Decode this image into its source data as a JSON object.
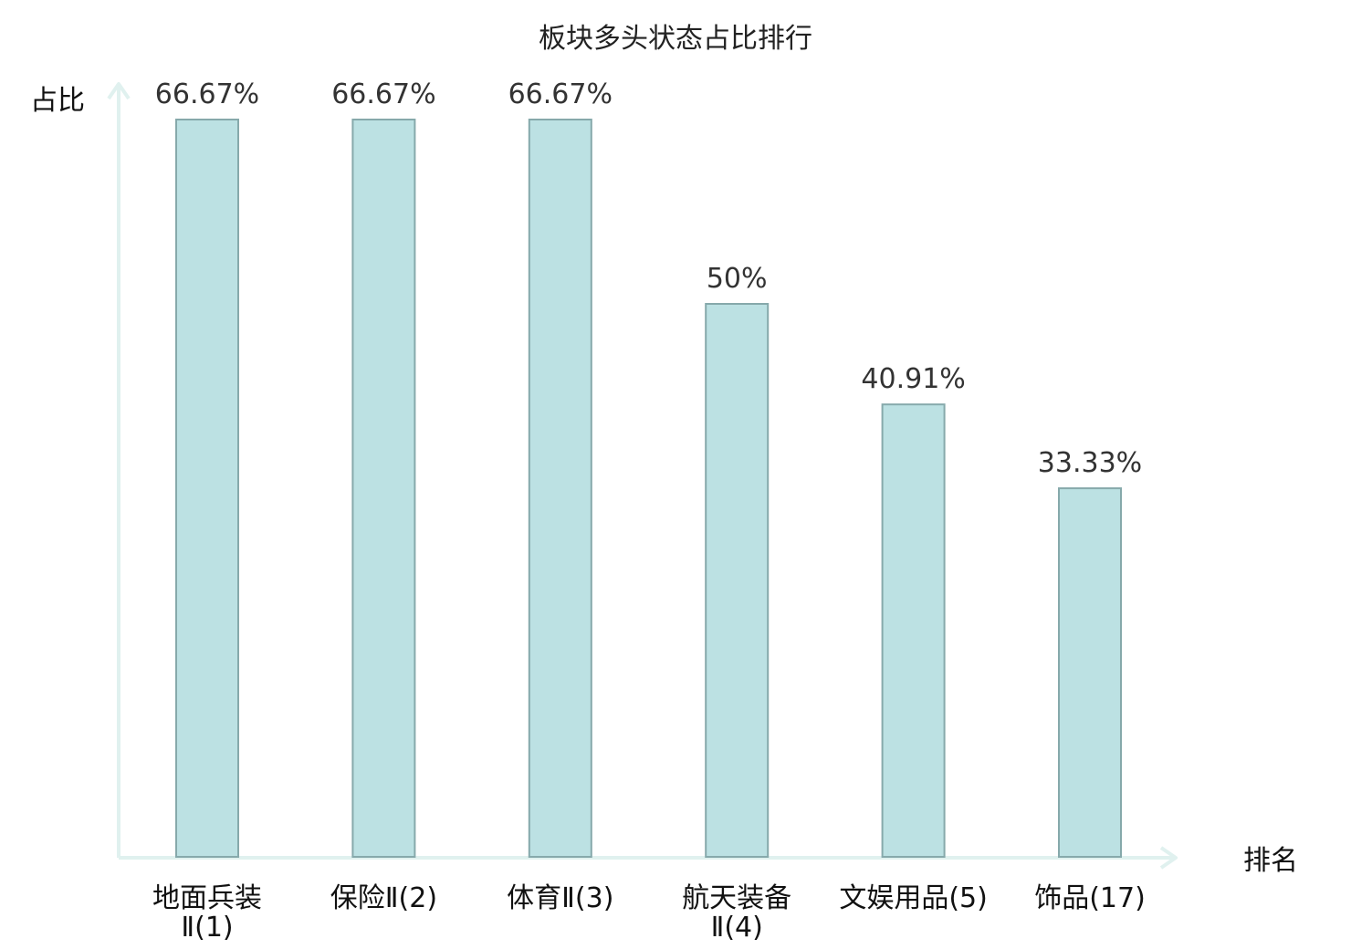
{
  "chart_data": {
    "type": "bar",
    "title": "板块多头状态占比排行",
    "ylabel": "占比",
    "xlabel": "排名",
    "ylim": [
      0,
      66.67
    ],
    "grid": false,
    "categories": [
      [
        "地面兵装",
        "Ⅱ(1)"
      ],
      [
        "保险Ⅱ(2)"
      ],
      [
        "体育Ⅱ(3)"
      ],
      [
        "航天装备",
        "Ⅱ(4)"
      ],
      [
        "文娱用品(5)"
      ],
      [
        "饰品(17)"
      ]
    ],
    "values": [
      66.67,
      66.67,
      66.67,
      50,
      40.91,
      33.33
    ],
    "value_labels": [
      "66.67%",
      "66.67%",
      "66.67%",
      "50%",
      "40.91%",
      "33.33%"
    ],
    "highlight_index": 5,
    "colors": {
      "bar_fill": "#bce1e3",
      "bar_stroke": "#86a9ab",
      "axis": "#e0f1ef",
      "highlight_text": "#e01010",
      "text": "#111111",
      "value_text": "#333333"
    }
  }
}
